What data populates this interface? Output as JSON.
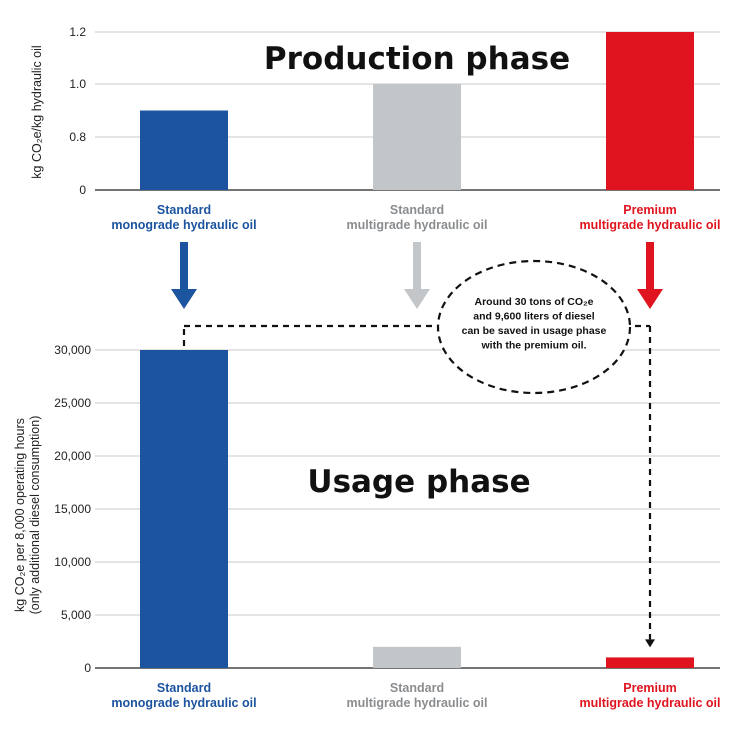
{
  "chart_data": [
    {
      "type": "bar",
      "title": "Production phase",
      "ylabel": "kg CO₂e/kg hydraulic oil",
      "categories": [
        [
          "Standard",
          "monograde hydraulic oil"
        ],
        [
          "Standard",
          "multigrade hydraulic oil"
        ],
        [
          "Premium",
          "multigrade hydraulic oil"
        ]
      ],
      "values": [
        0.9,
        1.0,
        1.2
      ],
      "yticks": [
        0,
        0.8,
        1.0,
        1.2
      ],
      "ytick_labels": [
        "0",
        "0.8",
        "1.0",
        "1.2"
      ],
      "colors": [
        "#1c54a0",
        "#c3c6c9",
        "#e0141e"
      ]
    },
    {
      "type": "bar",
      "title": "Usage phase",
      "ylabel": [
        "kg CO₂e per 8,000 operating hours",
        "(only additional diesel consumption)"
      ],
      "categories": [
        [
          "Standard",
          "monograde hydraulic oil"
        ],
        [
          "Standard",
          "multigrade hydraulic oil"
        ],
        [
          "Premium",
          "multigrade hydraulic oil"
        ]
      ],
      "values": [
        30000,
        2000,
        1000
      ],
      "ylim": [
        0,
        30000
      ],
      "yticks": [
        0,
        5000,
        10000,
        15000,
        20000,
        25000,
        30000
      ],
      "ytick_labels": [
        "0",
        "5,000",
        "10,000",
        "15,000",
        "20,000",
        "25,000",
        "30,000"
      ],
      "colors": [
        "#1c54a0",
        "#c3c6c9",
        "#e0141e"
      ]
    }
  ],
  "annotation": {
    "lines": [
      "Around 30 tons of CO₂e",
      "and 9,600 liters of diesel",
      "can be saved in usage phase",
      "with the premium oil."
    ]
  },
  "label_colors": [
    "#1c54a0",
    "#8a8d90",
    "#e0141e"
  ]
}
